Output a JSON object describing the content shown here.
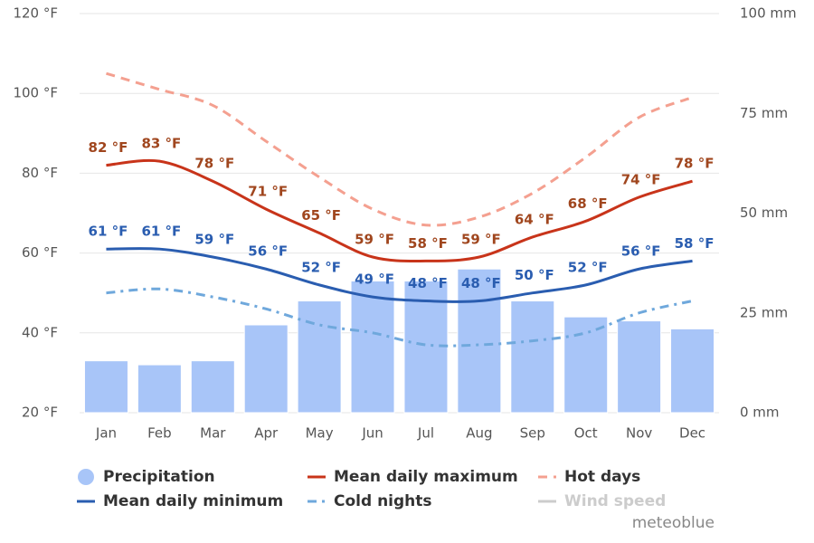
{
  "chart_data": {
    "type": "line",
    "categories": [
      "Jan",
      "Feb",
      "Mar",
      "Apr",
      "May",
      "Jun",
      "Jul",
      "Aug",
      "Sep",
      "Oct",
      "Nov",
      "Dec"
    ],
    "ylim": [
      20,
      120
    ],
    "yticks": [
      {
        "value": 20,
        "label": "20 °F"
      },
      {
        "value": 40,
        "label": "40 °F"
      },
      {
        "value": 60,
        "label": "60 °F"
      },
      {
        "value": 80,
        "label": "80 °F"
      },
      {
        "value": 100,
        "label": "100 °F"
      },
      {
        "value": 120,
        "label": "120 °F"
      }
    ],
    "y2lim": [
      0,
      100
    ],
    "y2ticks": [
      {
        "value": 0,
        "label": "0 mm"
      },
      {
        "value": 25,
        "label": "25 mm"
      },
      {
        "value": 50,
        "label": "50 mm"
      },
      {
        "value": 75,
        "label": "75 mm"
      },
      {
        "value": 100,
        "label": "100 mm"
      }
    ],
    "grid": true,
    "series": [
      {
        "name": "Precipitation",
        "type": "bar",
        "axis": "y2",
        "color": "#a8c5f8",
        "values": [
          13,
          12,
          13,
          22,
          28,
          33,
          33,
          36,
          28,
          24,
          23,
          21
        ]
      },
      {
        "name": "Mean daily maximum",
        "type": "line",
        "color": "#c8341a",
        "label_color": "#a0461e",
        "values": [
          82,
          83,
          78,
          71,
          65,
          59,
          58,
          59,
          64,
          68,
          74,
          78
        ],
        "value_labels": [
          "82 °F",
          "83 °F",
          "78 °F",
          "71 °F",
          "65 °F",
          "59 °F",
          "58 °F",
          "59 °F",
          "64 °F",
          "68 °F",
          "74 °F",
          "78 °F"
        ]
      },
      {
        "name": "Hot days",
        "type": "line",
        "dash": "dash",
        "color": "#f4a090",
        "values": [
          105,
          101,
          97,
          88,
          79,
          71,
          67,
          69,
          75,
          84,
          94,
          99
        ]
      },
      {
        "name": "Mean daily minimum",
        "type": "line",
        "color": "#2a5db0",
        "label_color": "#2a5db0",
        "values": [
          61,
          61,
          59,
          56,
          52,
          49,
          48,
          48,
          50,
          52,
          56,
          58
        ],
        "value_labels": [
          "61 °F",
          "61 °F",
          "59 °F",
          "56 °F",
          "52 °F",
          "49 °F",
          "48 °F",
          "48 °F",
          "50 °F",
          "52 °F",
          "56 °F",
          "58 °F"
        ]
      },
      {
        "name": "Cold nights",
        "type": "line",
        "dash": "dashdot",
        "color": "#6fa8dc",
        "values": [
          50,
          51,
          49,
          46,
          42,
          40,
          37,
          37,
          38,
          40,
          45,
          48
        ]
      },
      {
        "name": "Wind speed",
        "type": "line",
        "color": "#cccccc",
        "visible": false
      }
    ],
    "credit": "meteoblue"
  }
}
